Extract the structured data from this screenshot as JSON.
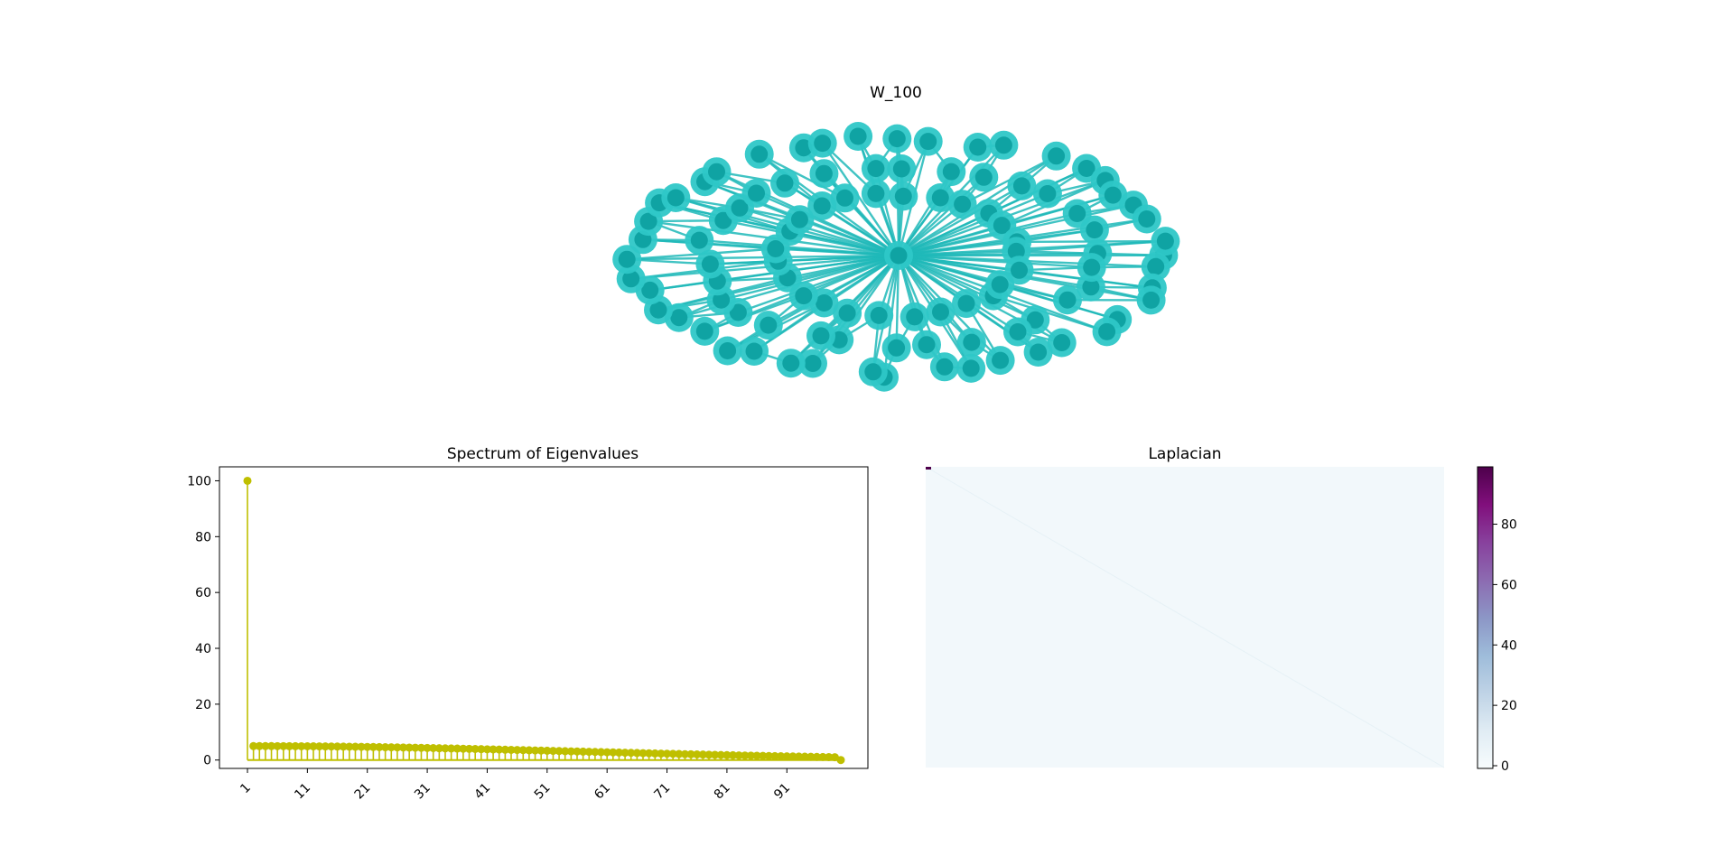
{
  "figure": {
    "graph_title": "W_100",
    "spectrum_title": "Spectrum of Eigenvalues",
    "laplacian_title": "Laplacian"
  },
  "colors": {
    "node_outer": "#2ec7c7",
    "node_inner": "#0fa3a3",
    "edge": "#1fb8b8",
    "stem": "#bfbf00",
    "heat_low": "#f7fcfd",
    "heat_high": "#4d004b"
  },
  "chart_data": [
    {
      "type": "graph",
      "title": "W_100",
      "graph_family": "wheel",
      "nodes": 100,
      "hub_degree": 99
    },
    {
      "type": "stem",
      "title": "Spectrum of Eigenvalues",
      "x_tick_labels": [
        "1",
        "11",
        "21",
        "31",
        "41",
        "51",
        "61",
        "71",
        "81",
        "91"
      ],
      "y_tick_labels": [
        "0",
        "20",
        "40",
        "60",
        "80",
        "100"
      ],
      "ylim": [
        -3,
        105
      ],
      "first_value": 100,
      "middle_values": [
        5.0,
        4.99,
        4.98,
        4.96,
        4.94,
        4.91,
        4.87,
        4.83,
        4.78,
        4.73,
        4.67,
        4.6,
        4.53,
        4.45,
        4.37,
        4.29,
        4.2,
        4.11,
        4.02,
        3.92,
        3.82,
        3.72,
        3.62,
        3.52,
        3.42,
        3.31,
        3.2,
        3.1,
        2.99,
        2.88,
        2.78,
        2.67,
        2.56,
        2.46,
        2.35,
        2.25,
        2.15,
        2.05,
        1.95,
        1.85,
        1.75,
        1.66,
        1.57,
        1.48,
        1.39,
        1.31,
        1.23,
        1.15,
        1.08,
        1.01
      ],
      "last_value": 0
    },
    {
      "type": "heatmap",
      "title": "Laplacian",
      "matrix": "graph Laplacian of W_100",
      "colorbar_ticks": [
        "0",
        "20",
        "40",
        "60",
        "80"
      ],
      "colorbar_range": [
        0,
        99
      ]
    }
  ]
}
